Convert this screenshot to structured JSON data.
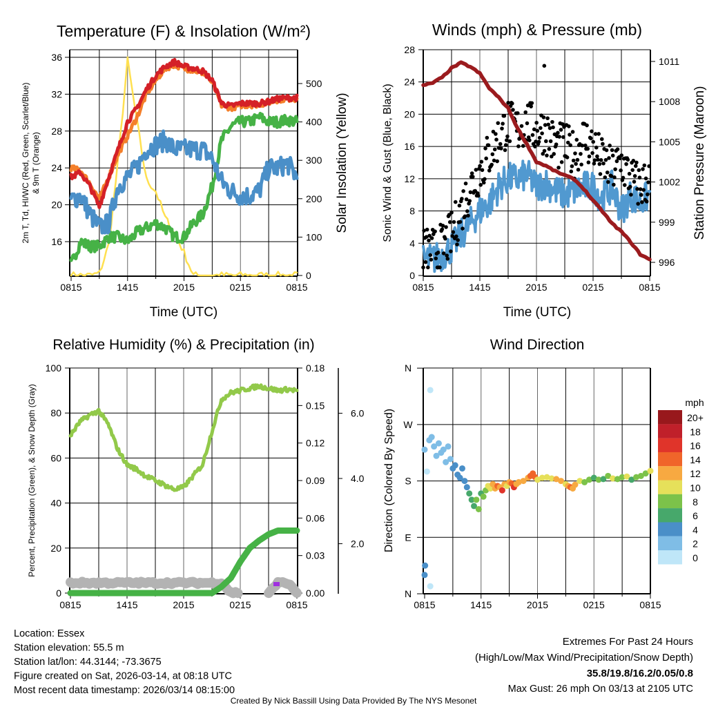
{
  "footer": {
    "location": "Location: Essex",
    "elevation": "Station elevation: 55.5 m",
    "latlon": "Station lat/lon: 44.3144; -73.3675",
    "created": "Figure created on Sat, 2026-03-14, at 08:18 UTC",
    "recent": "Most recent data timestamp: 2026/03/14 08:15:00",
    "extremes_title": "Extremes For Past 24 Hours",
    "extremes_sub": "(High/Low/Max Wind/Precipitation/Snow Depth)",
    "extremes_values": "35.8/19.8/16.2/0.05/0.8",
    "max_gust": "Max Gust: 26 mph On 03/13 at 2105 UTC",
    "credit": "Created By Nick Bassill Using Data Provided By The NYS Mesonet"
  },
  "colors": {
    "temp": "#d42027",
    "temp9m": "#f47f2a",
    "dewpoint": "#4a8fc8",
    "hiwc": "#46b246",
    "insolation": "#ffe050",
    "wind": "#5199d0",
    "gust": "#000000",
    "pressure": "#9b1b1e",
    "rh": "#92c94a",
    "precip": "#46b246",
    "snow": "#b3b3b3",
    "extremes": "#cc2229"
  },
  "chart_data": [
    {
      "type": "line",
      "title": "Temperature (F) & Insolation (W/m²)",
      "xlabel": "Time (UTC)",
      "ylabel": "2m T, Td, HI/WC (Red, Green, Scarlet/Blue)",
      "ylabel2": "& 9m T (Orange)",
      "y2label": "Solar Insolation (Yellow)",
      "x_hours_from_start": [
        0,
        1,
        2,
        3,
        4,
        5,
        6,
        7,
        8,
        9,
        10,
        11,
        12,
        13,
        14,
        15,
        16,
        17,
        18,
        19,
        20,
        21,
        22,
        23,
        24
      ],
      "xticks": [
        "0815",
        "1415",
        "2015",
        "0215",
        "0815"
      ],
      "yticks": [
        "16",
        "20",
        "24",
        "28",
        "32",
        "36"
      ],
      "y2ticks": [
        "0",
        "100",
        "200",
        "300",
        "400",
        "500"
      ],
      "ylim": [
        12.3,
        36.9
      ],
      "y2lim": [
        0,
        590
      ],
      "series": [
        {
          "name": "2m T (Red)",
          "values": [
            23,
            23.5,
            22,
            19.8,
            23,
            26,
            29,
            30.5,
            32.5,
            34,
            35,
            35.5,
            35,
            34.8,
            34.5,
            33.5,
            31,
            30.7,
            31,
            31,
            31,
            31.2,
            31.5,
            31.6,
            31.6
          ]
        },
        {
          "name": "9m T (Orange)",
          "values": [
            24,
            23.7,
            22.3,
            20.6,
            23,
            25.5,
            27.5,
            29.5,
            32,
            33.5,
            34.8,
            35.2,
            34.8,
            34.6,
            34.3,
            33.3,
            30.8,
            30.5,
            30.8,
            30.8,
            30.9,
            31.1,
            31.4,
            31.5,
            31.5
          ]
        },
        {
          "name": "Td (Blue)",
          "values": [
            20.5,
            21,
            19,
            17.5,
            18,
            22,
            23,
            24,
            26,
            26.5,
            27,
            26,
            26,
            26,
            26,
            25,
            22.5,
            21.5,
            21,
            21,
            21.5,
            24,
            24,
            24.5,
            23
          ]
        },
        {
          "name": "HI/WC (Green)",
          "values": [
            13.5,
            16,
            15.5,
            15.5,
            16.5,
            16.5,
            16,
            17,
            17.5,
            18,
            17.5,
            16.5,
            16.5,
            18,
            19,
            22,
            27,
            28.5,
            29,
            29,
            29.5,
            29,
            29,
            29.2,
            29
          ]
        },
        {
          "name": "Solar Insolation (Yellow)",
          "axis": "right",
          "values": [
            0,
            0,
            0,
            5,
            80,
            300,
            560,
            400,
            250,
            220,
            150,
            110,
            60,
            0,
            0,
            0,
            0,
            0,
            0,
            0,
            0,
            0,
            0,
            0,
            0
          ]
        }
      ]
    },
    {
      "type": "line",
      "title": "Winds (mph) & Pressure (mb)",
      "xlabel": "Time (UTC)",
      "ylabel": "Sonic Wind & Gust (Blue, Black)",
      "y2label": "Station Pressure (Maroon)",
      "x_hours_from_start": [
        0,
        1,
        2,
        3,
        4,
        5,
        6,
        7,
        8,
        9,
        10,
        11,
        12,
        13,
        14,
        15,
        16,
        17,
        18,
        19,
        20,
        21,
        22,
        23,
        24
      ],
      "xticks": [
        "0815",
        "1415",
        "2015",
        "0215",
        "0815"
      ],
      "yticks": [
        "0",
        "4",
        "8",
        "12",
        "16",
        "20",
        "24",
        "28"
      ],
      "y2ticks": [
        "996",
        "999",
        "1002",
        "1005",
        "1008",
        "1011"
      ],
      "ylim": [
        0,
        28
      ],
      "y2lim": [
        995,
        1011.5
      ],
      "series": [
        {
          "name": "Sonic Wind (Blue)",
          "values": [
            2,
            2,
            2.5,
            3.5,
            5,
            6.5,
            8,
            9,
            11,
            12,
            12,
            12.5,
            11,
            11.5,
            10.5,
            10,
            10.5,
            11,
            11,
            9.5,
            11,
            8,
            10,
            9,
            10
          ]
        },
        {
          "name": "Gust (Black)",
          "type": "scatter",
          "values": [
            3,
            3,
            3.5,
            5,
            8,
            11,
            13,
            15,
            17,
            19,
            18,
            19,
            18,
            18,
            16,
            16,
            15,
            17,
            16,
            14,
            13,
            14,
            12,
            11,
            12
          ]
        },
        {
          "name": "Station Pressure (Maroon)",
          "axis": "right",
          "values": [
            1009.2,
            1009.4,
            1009.8,
            1010.5,
            1010.9,
            1010.6,
            1010.1,
            1009.0,
            1008.3,
            1007.5,
            1006.0,
            1004.8,
            1003.5,
            1003.2,
            1002.8,
            1002.5,
            1002.2,
            1001.5,
            1000.6,
            999.8,
            998.9,
            998.3,
            997.5,
            996.6,
            996.2
          ]
        }
      ],
      "max_gust": {
        "hour": 12.83,
        "value": 26
      }
    },
    {
      "type": "line",
      "title": "Relative Humidity (%) & Precipitation (in)",
      "ylabel": "Percent, Precipitation (Green), & Snow Depth (Gray)",
      "x_hours_from_start": [
        0,
        1,
        2,
        3,
        4,
        5,
        6,
        7,
        8,
        9,
        10,
        11,
        12,
        13,
        14,
        15,
        16,
        17,
        18,
        19,
        20,
        21,
        22,
        23,
        24
      ],
      "xticks": [
        "0815",
        "1415",
        "2015",
        "0215",
        "0815"
      ],
      "yticks": [
        "0",
        "20",
        "40",
        "60",
        "80",
        "100"
      ],
      "y2ticks": [
        "0.00",
        "0.03",
        "0.06",
        "0.09",
        "0.12",
        "0.15",
        "0.18"
      ],
      "y3ticks": [
        "2.0",
        "4.0",
        "6.0"
      ],
      "ylim": [
        0,
        100
      ],
      "y2lim": [
        0,
        0.18
      ],
      "y3lim": [
        -0.5,
        7.4
      ],
      "series": [
        {
          "name": "Relative Humidity",
          "values": [
            70,
            76,
            79,
            81,
            75,
            64,
            57,
            55,
            52,
            50,
            48,
            46,
            47,
            52,
            57,
            72,
            86,
            89,
            90,
            91,
            92,
            91,
            90,
            90.5,
            90
          ]
        },
        {
          "name": "Precipitation (Green)",
          "axis": "right",
          "values": [
            0,
            0,
            0,
            0,
            0,
            0,
            0,
            0,
            0,
            0,
            0,
            0,
            0,
            0,
            0,
            0,
            0.005,
            0.012,
            0.025,
            0.036,
            0.042,
            0.047,
            0.05,
            0.05,
            0.05
          ]
        },
        {
          "name": "Snow Depth (Gray)",
          "axis": "far-right",
          "values": [
            0.8,
            0.8,
            0.8,
            0.8,
            0.8,
            0.8,
            0.8,
            0.8,
            0.8,
            0.8,
            0.8,
            0.8,
            0.8,
            0.8,
            0.8,
            0.8,
            0.8,
            0.5,
            0.5,
            null,
            null,
            0.5,
            0.8,
            0.8,
            0.5
          ]
        }
      ]
    },
    {
      "type": "scatter",
      "title": "Wind Direction",
      "ylabel": "Direction (Colored By Speed)",
      "xticks": [
        "0815",
        "1415",
        "2015",
        "0215",
        "0815"
      ],
      "yticks": [
        "N",
        "E",
        "S",
        "W",
        "N"
      ],
      "ylim": [
        0,
        360
      ],
      "legend_title": "mph",
      "legend": [
        {
          "label": "20+",
          "color": "#98181c"
        },
        {
          "label": "18",
          "color": "#c0202a"
        },
        {
          "label": "16",
          "color": "#e0342a"
        },
        {
          "label": "14",
          "color": "#f0652a"
        },
        {
          "label": "12",
          "color": "#f7a941"
        },
        {
          "label": "10",
          "color": "#e6e05a"
        },
        {
          "label": "8",
          "color": "#7cc24a"
        },
        {
          "label": "6",
          "color": "#47a86b"
        },
        {
          "label": "4",
          "color": "#4a8fc8"
        },
        {
          "label": "2",
          "color": "#7fbde6"
        },
        {
          "label": "0",
          "color": "#bfe6f8"
        }
      ],
      "points_hour_dir_speed": [
        [
          0.0,
          30,
          4
        ],
        [
          0.05,
          45,
          4
        ],
        [
          0.6,
          12,
          0
        ],
        [
          0.6,
          325,
          0
        ],
        [
          0.0,
          230,
          1
        ],
        [
          0.25,
          195,
          0
        ],
        [
          0.5,
          245,
          2
        ],
        [
          0.75,
          250,
          1
        ],
        [
          1.0,
          235,
          2
        ],
        [
          1.25,
          220,
          2
        ],
        [
          1.5,
          240,
          2
        ],
        [
          1.75,
          225,
          2
        ],
        [
          2.0,
          230,
          2
        ],
        [
          2.25,
          210,
          2
        ],
        [
          2.5,
          235,
          2
        ],
        [
          2.75,
          215,
          2
        ],
        [
          3.0,
          200,
          4
        ],
        [
          3.25,
          205,
          4
        ],
        [
          3.5,
          190,
          4
        ],
        [
          3.75,
          185,
          4
        ],
        [
          4.0,
          200,
          3
        ],
        [
          4.25,
          180,
          4
        ],
        [
          4.5,
          170,
          4
        ],
        [
          4.75,
          160,
          5
        ],
        [
          5.0,
          150,
          6
        ],
        [
          5.25,
          140,
          6
        ],
        [
          5.5,
          150,
          7
        ],
        [
          5.75,
          135,
          8
        ],
        [
          6.0,
          160,
          6
        ],
        [
          6.25,
          155,
          8
        ],
        [
          6.5,
          165,
          8
        ],
        [
          6.75,
          172,
          10
        ],
        [
          7.0,
          168,
          10
        ],
        [
          7.25,
          175,
          12
        ],
        [
          7.5,
          168,
          12
        ],
        [
          7.75,
          172,
          14
        ],
        [
          8.0,
          170,
          12
        ],
        [
          8.25,
          165,
          15
        ],
        [
          8.5,
          175,
          12
        ],
        [
          8.75,
          172,
          10
        ],
        [
          9.0,
          178,
          12
        ],
        [
          9.25,
          176,
          14
        ],
        [
          9.5,
          170,
          16
        ],
        [
          9.75,
          175,
          12
        ],
        [
          10.0,
          178,
          12
        ],
        [
          10.5,
          180,
          12
        ],
        [
          11.0,
          185,
          12
        ],
        [
          11.25,
          188,
          14
        ],
        [
          11.5,
          192,
          14
        ],
        [
          11.75,
          186,
          14
        ],
        [
          12.0,
          182,
          10
        ],
        [
          12.5,
          185,
          10
        ],
        [
          13.0,
          186,
          10
        ],
        [
          13.5,
          184,
          10
        ],
        [
          14.0,
          183,
          12
        ],
        [
          14.5,
          180,
          12
        ],
        [
          15.0,
          175,
          10
        ],
        [
          15.25,
          172,
          12
        ],
        [
          15.5,
          170,
          14
        ],
        [
          15.75,
          168,
          12
        ],
        [
          16.0,
          174,
          12
        ],
        [
          16.5,
          180,
          10
        ],
        [
          17.0,
          178,
          8
        ],
        [
          17.5,
          182,
          8
        ],
        [
          18.0,
          185,
          6
        ],
        [
          18.5,
          182,
          8
        ],
        [
          19.0,
          183,
          6
        ],
        [
          19.5,
          188,
          8
        ],
        [
          20.0,
          184,
          10
        ],
        [
          20.5,
          183,
          8
        ],
        [
          21.0,
          186,
          8
        ],
        [
          21.5,
          187,
          10
        ],
        [
          22.0,
          182,
          6
        ],
        [
          22.5,
          186,
          8
        ],
        [
          23.0,
          188,
          8
        ],
        [
          23.5,
          192,
          8
        ],
        [
          24.0,
          196,
          10
        ]
      ]
    }
  ]
}
